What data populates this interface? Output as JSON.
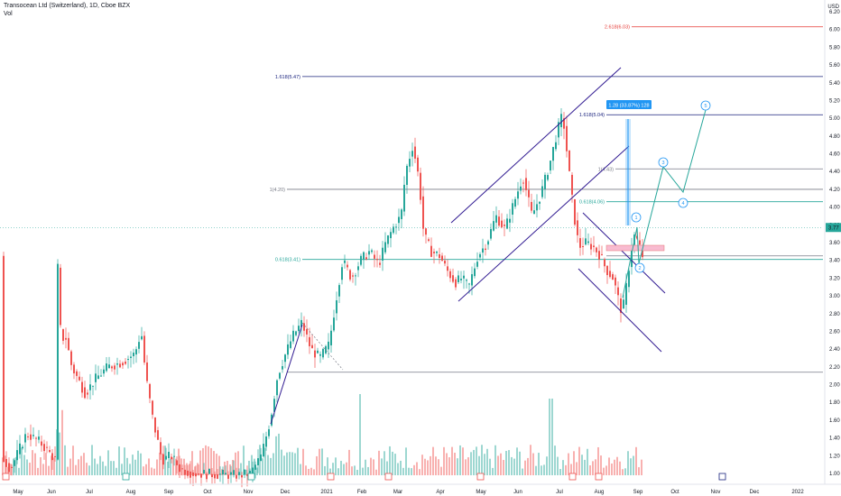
{
  "header": {
    "symbol_line": "Transocean Ltd (Switzerland), 1D, Cboe BZX",
    "volume_label": "Vol"
  },
  "price_axis": {
    "currency": "USD",
    "ticks": [
      "6.20",
      "6.00",
      "5.80",
      "5.60",
      "5.40",
      "5.20",
      "5.00",
      "4.80",
      "4.60",
      "4.40",
      "4.20",
      "4.00",
      "3.80",
      "3.60",
      "3.40",
      "3.20",
      "3.00",
      "2.80",
      "2.60",
      "2.40",
      "2.20",
      "2.00",
      "1.80",
      "1.60",
      "1.40",
      "1.20",
      "1.00"
    ],
    "last_price_label": "3.77"
  },
  "time_axis": {
    "labels": [
      "May",
      "Jun",
      "Jul",
      "Aug",
      "Sep",
      "Oct",
      "Nov",
      "Dec",
      "2021",
      "Feb",
      "Mar",
      "Apr",
      "May",
      "Jun",
      "Jul",
      "Aug",
      "Sep",
      "Oct",
      "Nov",
      "Dec",
      "2022"
    ]
  },
  "colors": {
    "up": "#26a69a",
    "down": "#ef5350",
    "channel": "#311b92",
    "wave": "#26a69a",
    "fib_blue": "#1a237e",
    "fib_red": "#e53935",
    "fib_gray": "#787b86",
    "fib_teal": "#26a69a",
    "measure": "#2196f3"
  },
  "fib_levels": [
    {
      "label": "2.618(6.03)",
      "price": 6.03,
      "color": "red"
    },
    {
      "label": "1.618(5.47)",
      "price": 5.47,
      "color": "blue"
    },
    {
      "label": "1.618(5.04)",
      "price": 5.04,
      "color": "blue"
    },
    {
      "label": "1(4.43)",
      "price": 4.43,
      "color": "gray"
    },
    {
      "label": "1(4.20)",
      "price": 4.2,
      "color": "gray"
    },
    {
      "label": "0.618(4.06)",
      "price": 4.06,
      "color": "teal"
    },
    {
      "label": "0.618(3.41)",
      "price": 3.41,
      "color": "teal"
    }
  ],
  "measure_label": "1.28 (33.87%) 128",
  "wave_labels": [
    "1",
    "2",
    "3",
    "4",
    "5"
  ],
  "chart_data": {
    "type": "candlestick",
    "title": "Transocean Ltd (Switzerland), 1D, Cboe BZX",
    "y_range": [
      0.95,
      6.25
    ],
    "y_scale": "linear",
    "grid": false,
    "approx_close_series": {
      "dates": [
        "2020-05",
        "2020-06",
        "2020-07",
        "2020-08",
        "2020-09",
        "2020-10",
        "2020-11",
        "2020-12",
        "2021-01",
        "2021-02",
        "2021-03",
        "2021-04",
        "2021-05",
        "2021-06",
        "2021-07",
        "2021-08",
        "2021-09"
      ],
      "close": [
        1.2,
        2.1,
        1.85,
        2.35,
        1.05,
        0.98,
        1.7,
        2.5,
        3.55,
        3.7,
        4.75,
        3.2,
        3.6,
        4.6,
        4.8,
        2.9,
        3.77
      ]
    },
    "last_price": 3.77
  }
}
